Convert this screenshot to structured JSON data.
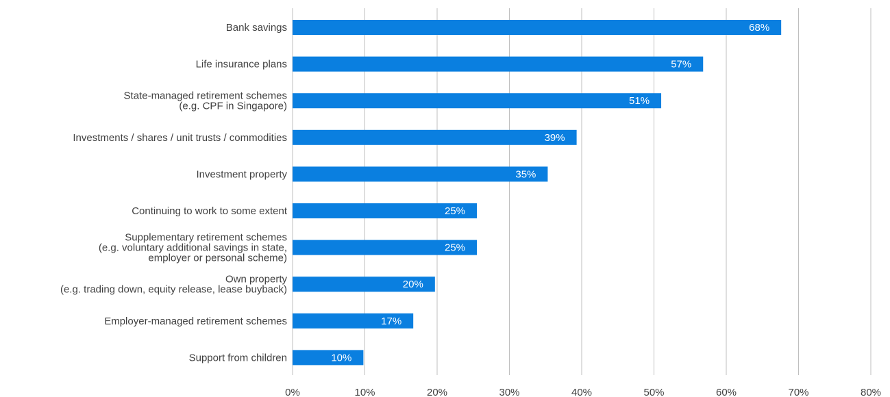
{
  "chart_data": {
    "type": "bar",
    "orientation": "horizontal",
    "title": "",
    "xlabel": "",
    "ylabel": "",
    "xlim": [
      0,
      80
    ],
    "x_ticks": [
      "0%",
      "10%",
      "20%",
      "30%",
      "40%",
      "50%",
      "60%",
      "70%",
      "80%"
    ],
    "grid": true,
    "bar_color": "#0a7fe0",
    "categories": [
      [
        "Bank savings"
      ],
      [
        "Life insurance plans"
      ],
      [
        "State-managed retirement schemes",
        "(e.g. CPF in Singapore)"
      ],
      [
        "Investments / shares / unit trusts / commodities"
      ],
      [
        "Investment property"
      ],
      [
        "Continuing to work to some extent"
      ],
      [
        "Supplementary retirement schemes",
        "(e.g. voluntary additional savings in state,",
        "employer or personal scheme)"
      ],
      [
        "Own property",
        "(e.g. trading down, equity release, lease buyback)"
      ],
      [
        "Employer-managed retirement schemes"
      ],
      [
        "Support from children"
      ]
    ],
    "values": [
      67.6,
      56.8,
      51.0,
      39.3,
      35.3,
      25.5,
      25.5,
      19.7,
      16.7,
      9.8
    ],
    "data_labels": [
      "68%",
      "57%",
      "51%",
      "39%",
      "35%",
      "25%",
      "25%",
      "20%",
      "17%",
      "10%"
    ]
  }
}
